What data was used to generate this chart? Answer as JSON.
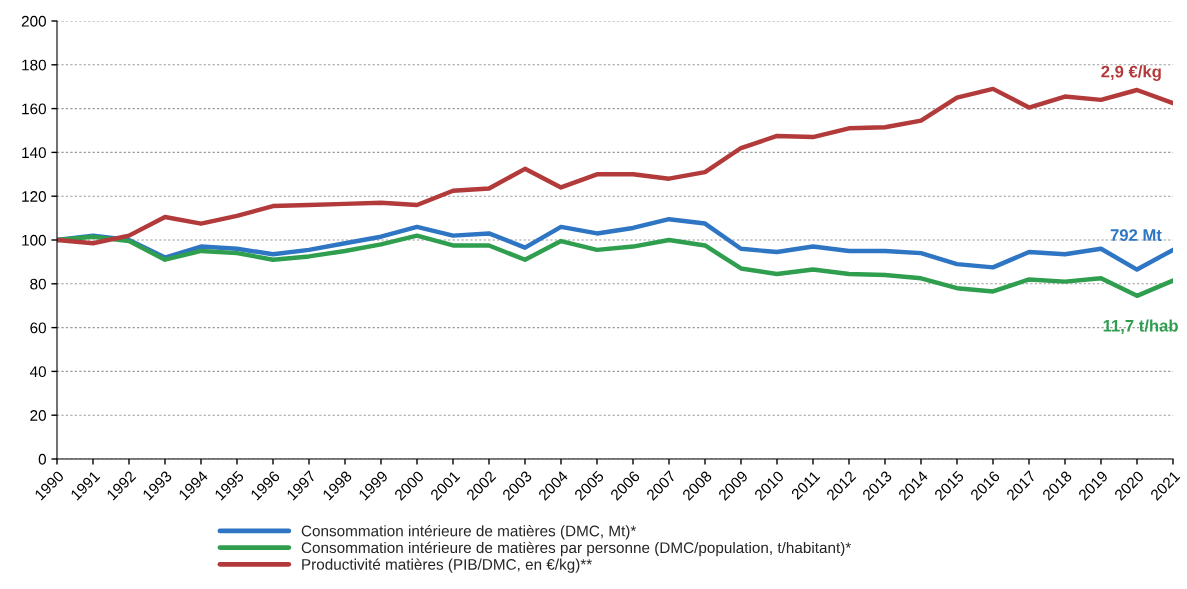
{
  "chart_data": {
    "type": "line",
    "categories": [
      "1990",
      "1991",
      "1992",
      "1993",
      "1994",
      "1995",
      "1996",
      "1997",
      "1998",
      "1999",
      "2000",
      "2001",
      "2002",
      "2003",
      "2004",
      "2005",
      "2006",
      "2007",
      "2008",
      "2009",
      "2010",
      "2011",
      "2012",
      "2013",
      "2014",
      "2015",
      "2016",
      "2017",
      "2018",
      "2019",
      "2020",
      "2021"
    ],
    "series": [
      {
        "name": "Consommation intérieure de matières (DMC, Mt)*",
        "color": "#2e75c4",
        "values": [
          100,
          102,
          100,
          92,
          97,
          96,
          93.5,
          95.5,
          98.5,
          101.5,
          106,
          102,
          103,
          96.5,
          106,
          103,
          105.5,
          109.5,
          107.5,
          96,
          94.5,
          97,
          95,
          95,
          94,
          89,
          87.5,
          94.5,
          93.5,
          96,
          86.5,
          95.5
        ]
      },
      {
        "name": "Consommation intérieure de matières par personne (DMC/population, t/habitant)*",
        "color": "#2f9e4f",
        "values": [
          100,
          101.5,
          99.5,
          91,
          95,
          94,
          91,
          92.5,
          95,
          98,
          102,
          97.5,
          97.5,
          91,
          99.5,
          95.5,
          97,
          100,
          97.5,
          87,
          84.5,
          86.5,
          84.5,
          84,
          82.5,
          78,
          76.5,
          82,
          81,
          82.5,
          74.5,
          81.5
        ]
      },
      {
        "name": "Productivité matières (PIB/DMC, en €/kg)**",
        "color": "#b23a3a",
        "values": [
          100,
          98.5,
          102,
          110.5,
          107.5,
          111,
          115.5,
          116,
          116.5,
          117,
          116,
          122.5,
          123.5,
          132.5,
          124,
          130,
          130,
          128,
          131,
          142,
          147.5,
          147,
          151,
          151.5,
          154.5,
          165,
          169,
          160.5,
          165.5,
          164,
          168.5,
          162.5
        ]
      }
    ],
    "annotations": [
      {
        "text": "792 Mt",
        "x": "2021",
        "y": 95.5
      },
      {
        "text": "11,7 t/hab",
        "x": "2021",
        "y": 81.5
      },
      {
        "text": "2,9 €/kg",
        "x": "2021",
        "y": 162.5
      }
    ],
    "ylim": [
      0,
      200
    ],
    "yticks": [
      0,
      20,
      40,
      60,
      80,
      100,
      120,
      140,
      160,
      180,
      200
    ],
    "grid": "y",
    "legend": "bottom",
    "line_style": "solid",
    "marker": "none"
  }
}
